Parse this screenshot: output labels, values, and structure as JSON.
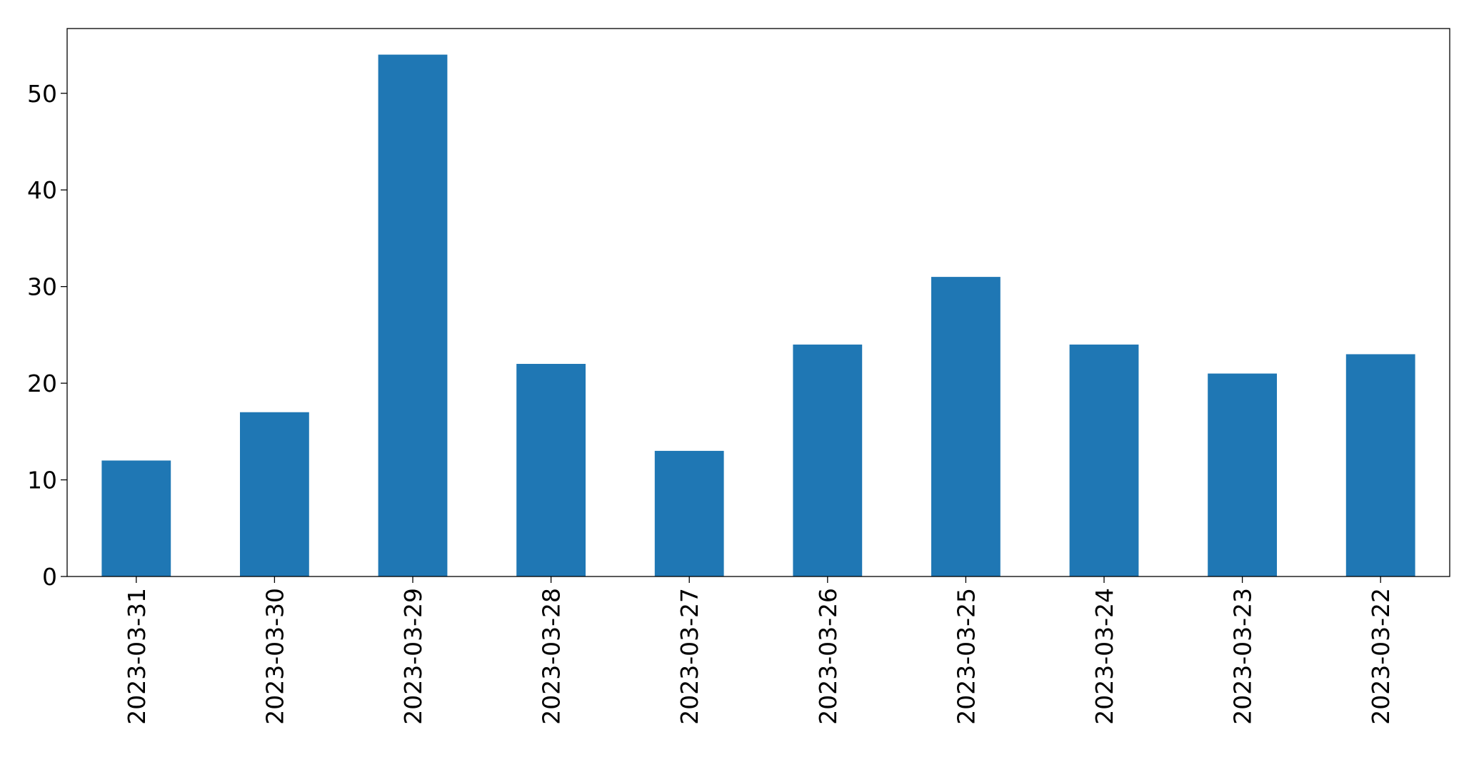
{
  "chart_data": {
    "type": "bar",
    "categories": [
      "2023-03-31",
      "2023-03-30",
      "2023-03-29",
      "2023-03-28",
      "2023-03-27",
      "2023-03-26",
      "2023-03-25",
      "2023-03-24",
      "2023-03-23",
      "2023-03-22"
    ],
    "values": [
      12,
      17,
      54,
      22,
      13,
      24,
      31,
      24,
      21,
      23
    ],
    "color": "#1f77b4",
    "ylim": [
      0,
      56.7
    ],
    "yticks": [
      0,
      10,
      20,
      30,
      40,
      50
    ],
    "grid": false
  }
}
